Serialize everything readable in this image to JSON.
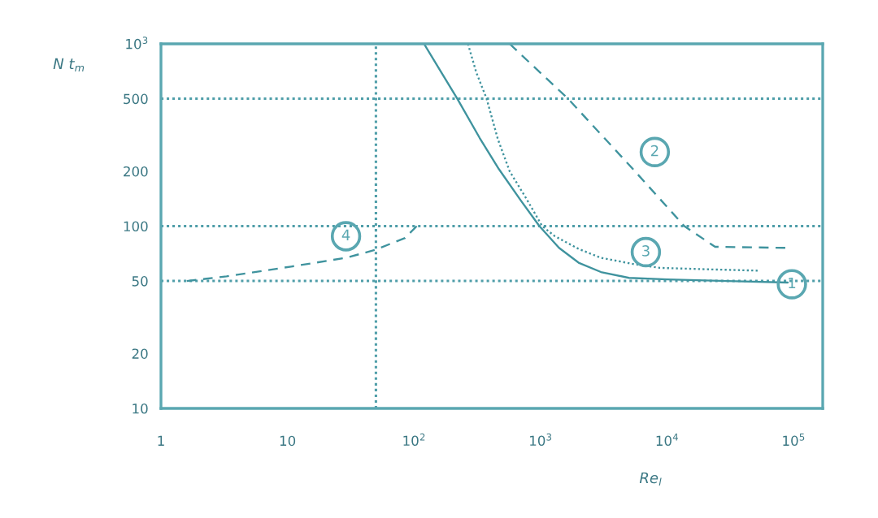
{
  "chart_data": {
    "type": "line",
    "xlabel": "Re$_{l}$",
    "ylabel": "N t$_{m}$",
    "log": "xy",
    "xlim": [
      1,
      170000
    ],
    "xticks": [
      1,
      10,
      {
        "value": 100,
        "label": "10$^{2}$"
      },
      {
        "value": 1000,
        "label": "10$^{3}$"
      },
      {
        "value": 10000,
        "label": "10$^{4}$"
      },
      {
        "value": 100000,
        "label": "10$^{5}$"
      }
    ],
    "ylim": [
      10,
      1000
    ],
    "yticks": [
      10,
      20,
      50,
      100,
      200,
      500,
      {
        "value": 1000,
        "label": "10$^{3}$"
      }
    ],
    "series": [
      {
        "color": "#3f939e",
        "line_style": "solid",
        "x": [
          120,
          160,
          220,
          330,
          470,
          700,
          980,
          1400,
          2000,
          3000,
          5000,
          10000,
          30000,
          90000
        ],
        "values": [
          1000,
          720,
          500,
          305,
          205,
          138,
          100,
          76,
          63,
          56,
          52,
          51,
          50,
          49
        ]
      },
      {
        "color": "#3f939e",
        "line_style": "dashed",
        "x": [
          570,
          1650,
          5400,
          13700,
          24000,
          86000
        ],
        "values": [
          1000,
          500,
          205,
          100,
          77,
          76
        ]
      },
      {
        "color": "#3f939e",
        "line_style": "dotted",
        "x": [
          267,
          310,
          375,
          460,
          570,
          780,
          1030,
          1300,
          2000,
          3000,
          5400,
          8800,
          20000,
          52000
        ],
        "values": [
          1000,
          700,
          500,
          300,
          200,
          140,
          100,
          88,
          75,
          67,
          62,
          59,
          58,
          57
        ]
      },
      {
        "color": "#3f939e",
        "line_style": "dashed",
        "x": [
          1.6,
          3.3,
          10.7,
          29,
          49,
          85,
          105
        ],
        "values": [
          50,
          53,
          60,
          67,
          74,
          86,
          100
        ]
      }
    ],
    "ref_lines": [
      {
        "axis": "y",
        "value": 500,
        "color": "#4f9ea9",
        "line_style": "dotted"
      },
      {
        "axis": "y",
        "value": 100,
        "color": "#4f9ea9",
        "line_style": "dotted"
      },
      {
        "axis": "y",
        "value": 50,
        "color": "#4f9ea9",
        "line_style": "dotted"
      },
      {
        "axis": "x",
        "value": 50,
        "color": "#4f9ea9",
        "line_style": "dotted"
      }
    ],
    "annotations": [
      {
        "text": "1",
        "x": 97000,
        "y": 48
      },
      {
        "text": "2",
        "x": 8000,
        "y": 255
      },
      {
        "text": "3",
        "x": 6800,
        "y": 72
      },
      {
        "text": "4",
        "x": 29,
        "y": 88
      }
    ]
  }
}
